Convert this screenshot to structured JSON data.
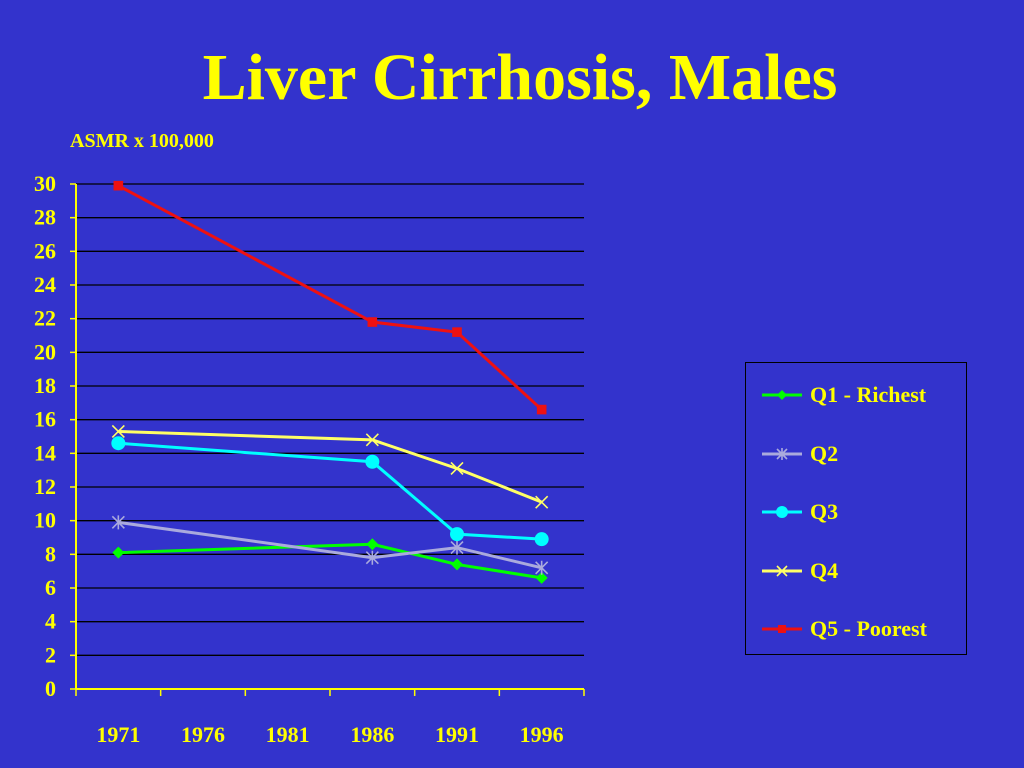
{
  "title": "Liver Cirrhosis, Males",
  "chart_data": {
    "type": "line",
    "title": "Liver Cirrhosis, Males",
    "ylabel": "ASMR x 100,000",
    "xlabel": "",
    "x_ticks": [
      "1971",
      "1976",
      "1981",
      "1986",
      "1991",
      "1996"
    ],
    "ylim": [
      0,
      30
    ],
    "y_ticks": [
      0,
      2,
      4,
      6,
      8,
      10,
      12,
      14,
      16,
      18,
      20,
      22,
      24,
      26,
      28,
      30
    ],
    "grid": true,
    "legend_position": "right",
    "x": [
      1971,
      1986,
      1991,
      1996
    ],
    "series": [
      {
        "name": "Q1 - Richest",
        "color": "#00ff00",
        "marker": "diamond",
        "values": [
          8.1,
          8.6,
          7.4,
          6.6
        ]
      },
      {
        "name": "Q2",
        "color": "#aaaadd",
        "marker": "asterisk",
        "values": [
          9.9,
          7.8,
          8.4,
          7.2
        ]
      },
      {
        "name": "Q3",
        "color": "#00ffff",
        "marker": "circle",
        "values": [
          14.6,
          13.5,
          9.2,
          8.9
        ]
      },
      {
        "name": "Q4",
        "color": "#ffff66",
        "marker": "x",
        "values": [
          15.3,
          14.8,
          13.1,
          11.1
        ]
      },
      {
        "name": "Q5 - Poorest",
        "color": "#ee1111",
        "marker": "square",
        "values": [
          29.9,
          21.8,
          21.2,
          16.6
        ]
      }
    ]
  }
}
